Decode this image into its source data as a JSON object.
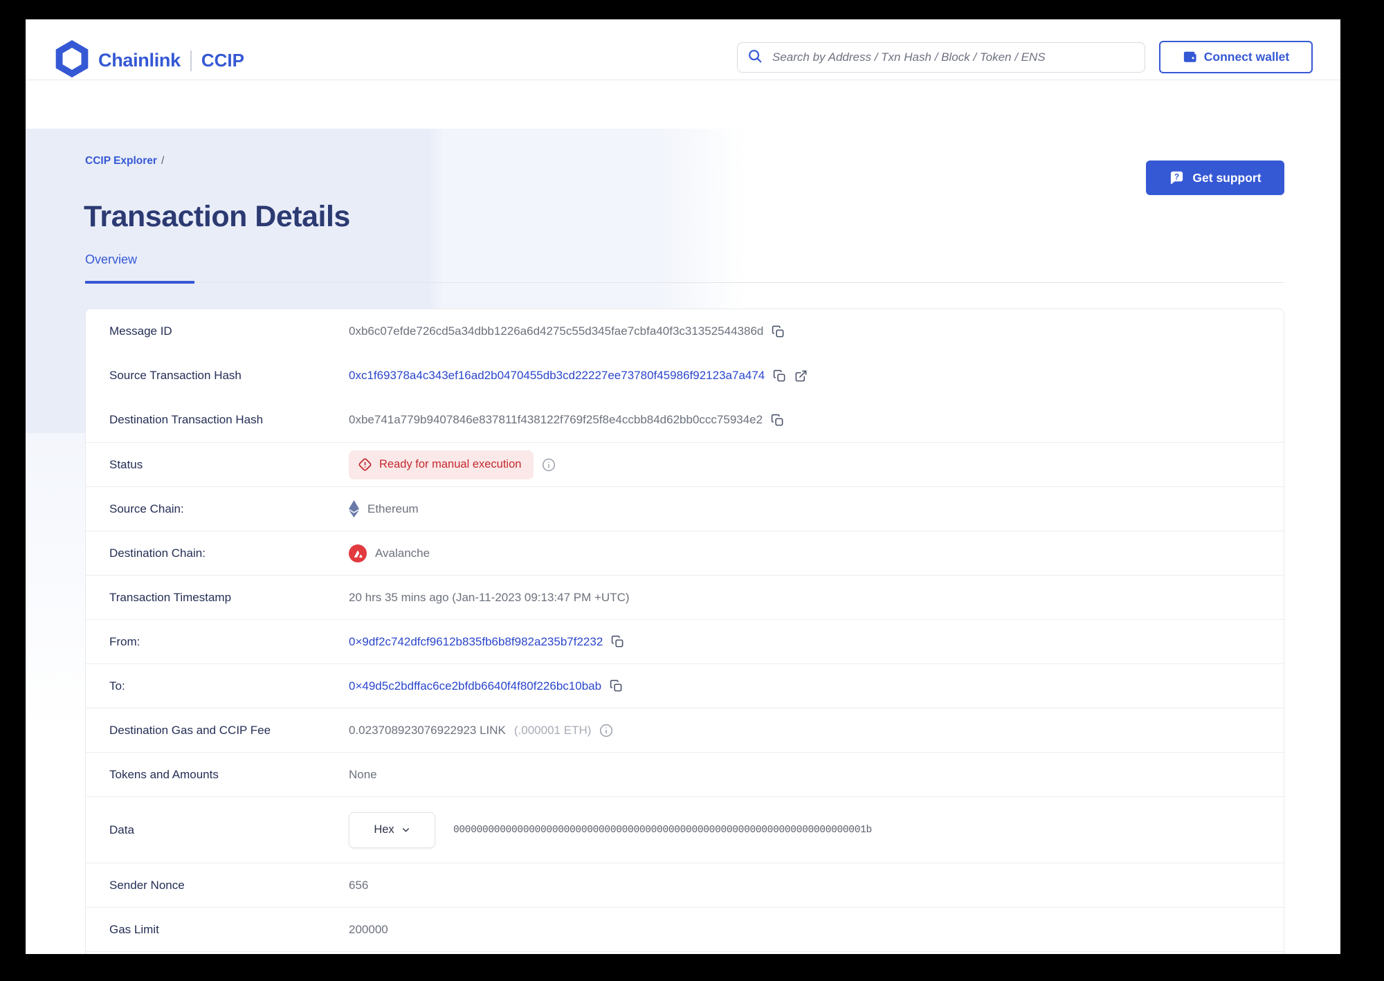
{
  "colors": {
    "accent": "#3558d4",
    "link": "#2b46cc",
    "status_red": "#c3292f",
    "status_bg": "#fbe8e8",
    "label": "#242e55",
    "value": "#6c717c",
    "title": "#2c3a72"
  },
  "header": {
    "brand": "Chainlink",
    "product": "CCIP",
    "search_placeholder": "Search by Address / Txn Hash / Block / Token / ENS",
    "connect_wallet_label": "Connect wallet"
  },
  "nav": {
    "breadcrumb": "CCIP Explorer",
    "separator": "/",
    "title": "Transaction Details",
    "support_label": "Get support",
    "tab": "Overview"
  },
  "details": {
    "rows": [
      {
        "id": "message-id",
        "label": "Message ID",
        "type": "hash",
        "value": "0xb6c07efde726cd5a34dbb1226a6d4275c55d345fae7cbfa40f3c31352544386d",
        "icons": [
          "copy-icon"
        ],
        "divider": false
      },
      {
        "id": "source-transaction-hash",
        "label": "Source Transaction Hash",
        "type": "link",
        "value": "0xc1f69378a4c343ef16ad2b0470455db3cd22227ee73780f45986f92123a7a474",
        "icons": [
          "copy-icon",
          "external-link-icon"
        ],
        "divider": false
      },
      {
        "id": "destination-transaction-hash",
        "label": "Destination Transaction Hash",
        "type": "hash",
        "value": "0xbe741a779b9407846e837811f438122f769f25f8e4ccbb84d62bb0ccc75934e2",
        "icons": [
          "copy-icon"
        ],
        "divider": false
      },
      {
        "id": "status",
        "label": "Status",
        "type": "status",
        "value": "Ready for manual execution",
        "icons": [
          "info-icon"
        ],
        "divider": true
      },
      {
        "id": "source-chain",
        "label": "Source Chain:",
        "type": "chain",
        "value": "Ethereum",
        "chain": "ethereum",
        "divider": true
      },
      {
        "id": "destination-chain",
        "label": "Destination Chain:",
        "type": "chain",
        "value": "Avalanche",
        "chain": "avalanche",
        "divider": true
      },
      {
        "id": "transaction-timestamp",
        "label": "Transaction Timestamp",
        "type": "text",
        "value": "20 hrs 35 mins ago (Jan-11-2023 09:13:47 PM +UTC)",
        "divider": true
      },
      {
        "id": "from",
        "label": "From:",
        "type": "link",
        "value": "0×9df2c742dfcf9612b835fb6b8f982a235b7f2232",
        "icons": [
          "copy-icon"
        ],
        "divider": true
      },
      {
        "id": "to",
        "label": "To:",
        "type": "link",
        "value": "0×49d5c2bdffac6ce2bfdb6640f4f80f226bc10bab",
        "icons": [
          "copy-icon"
        ],
        "divider": true
      },
      {
        "id": "destination-gas-and-ccip-fee",
        "label": "Destination Gas and CCIP Fee",
        "type": "fee",
        "value": "0.023708923076922923 LINK",
        "secondary": "(.000001 ETH)",
        "icons": [
          "info-icon"
        ],
        "divider": true
      },
      {
        "id": "tokens-and-amounts",
        "label": "Tokens and Amounts",
        "type": "text",
        "value": "None",
        "divider": true
      },
      {
        "id": "data",
        "label": "Data",
        "type": "data",
        "format": "Hex",
        "value": "00000000000000000000000000000000000000000000000000000000000000000000001b",
        "divider": true
      },
      {
        "id": "sender-nonce",
        "label": "Sender Nonce",
        "type": "text",
        "value": "656",
        "divider": true
      },
      {
        "id": "gas-limit",
        "label": "Gas Limit",
        "type": "text",
        "value": "200000",
        "divider": true
      }
    ]
  }
}
